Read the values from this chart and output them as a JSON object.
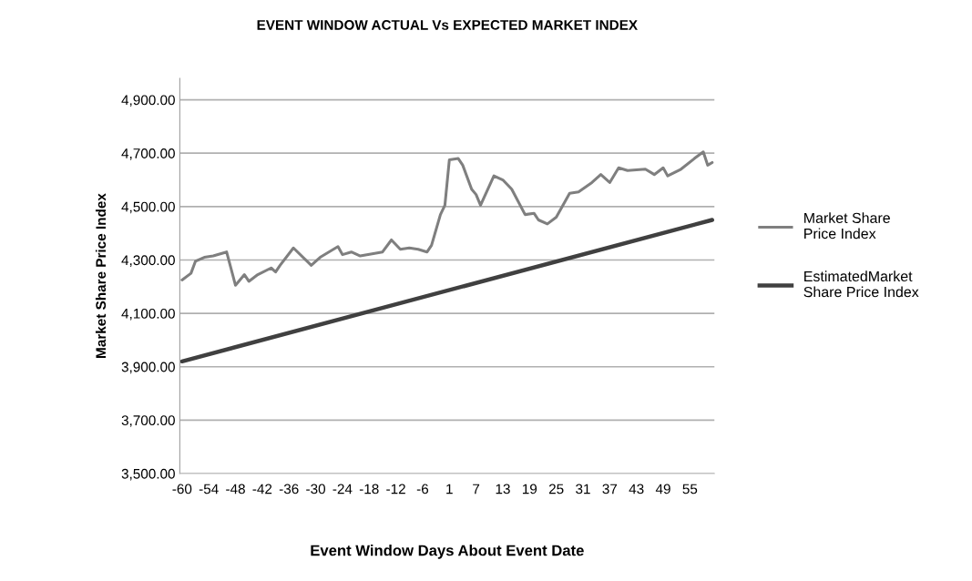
{
  "chart_data": {
    "type": "line",
    "title": "EVENT WINDOW ACTUAL Vs EXPECTED MARKET INDEX",
    "xlabel": "Event Window Days About Event Date",
    "ylabel": "Market Share Price Index",
    "categories": [
      "-60",
      null,
      null,
      null,
      null,
      null,
      "-54",
      null,
      null,
      null,
      null,
      null,
      "-48",
      null,
      null,
      null,
      null,
      null,
      "-42",
      null,
      null,
      null,
      null,
      null,
      "-36",
      null,
      null,
      null,
      null,
      null,
      "-30",
      null,
      null,
      null,
      null,
      null,
      "-24",
      null,
      null,
      null,
      null,
      null,
      "-18",
      null,
      null,
      null,
      null,
      null,
      "-12",
      null,
      null,
      null,
      null,
      null,
      "-6",
      null,
      null,
      null,
      null,
      null,
      "1",
      null,
      null,
      null,
      null,
      null,
      "7",
      null,
      null,
      null,
      null,
      null,
      "13",
      null,
      null,
      null,
      null,
      null,
      "19",
      null,
      null,
      null,
      null,
      null,
      "25",
      null,
      null,
      null,
      null,
      null,
      "31",
      null,
      null,
      null,
      null,
      null,
      "37",
      null,
      null,
      null,
      null,
      null,
      "43",
      null,
      null,
      null,
      null,
      null,
      "49",
      null,
      null,
      null,
      null,
      null,
      "55",
      null,
      null,
      null,
      null,
      null
    ],
    "series": [
      {
        "name": "Market Share Price Index",
        "color": "#7f7f7f",
        "values": [
          4225,
          null,
          4250,
          4295,
          null,
          4310,
          null,
          4315,
          null,
          null,
          4330,
          null,
          4205,
          null,
          4245,
          4220,
          null,
          4245,
          null,
          null,
          4270,
          4255,
          4280,
          null,
          null,
          4345,
          null,
          null,
          null,
          4280,
          null,
          4310,
          null,
          null,
          null,
          4350,
          4320,
          null,
          4330,
          null,
          4315,
          null,
          null,
          null,
          null,
          4330,
          null,
          4375,
          null,
          4340,
          null,
          4345,
          null,
          4340,
          null,
          4330,
          4355,
          null,
          4470,
          4505,
          4675,
          null,
          4680,
          4655,
          null,
          4565,
          4545,
          4505,
          null,
          null,
          4615,
          null,
          4600,
          null,
          4565,
          null,
          null,
          4470,
          null,
          4475,
          4450,
          null,
          4435,
          null,
          4460,
          null,
          null,
          4550,
          null,
          4555,
          null,
          null,
          4590,
          null,
          4620,
          null,
          4590,
          null,
          4645,
          null,
          4635,
          null,
          null,
          null,
          4640,
          null,
          4620,
          null,
          4645,
          4615,
          null,
          null,
          4640,
          null,
          null,
          4680,
          null,
          4705,
          4655,
          4665
        ]
      },
      {
        "name": "EstimatedMarket Share Price Index",
        "color": "#404040",
        "values": [
          3920,
          null,
          null,
          null,
          null,
          null,
          null,
          null,
          null,
          null,
          null,
          null,
          null,
          null,
          null,
          null,
          null,
          null,
          null,
          null,
          null,
          null,
          null,
          null,
          null,
          null,
          null,
          null,
          null,
          null,
          null,
          null,
          null,
          null,
          null,
          null,
          null,
          null,
          null,
          null,
          null,
          null,
          null,
          null,
          null,
          null,
          null,
          null,
          null,
          null,
          null,
          null,
          null,
          null,
          null,
          null,
          null,
          null,
          null,
          null,
          null,
          null,
          null,
          null,
          null,
          null,
          null,
          null,
          null,
          null,
          null,
          null,
          null,
          null,
          null,
          null,
          null,
          null,
          null,
          null,
          null,
          null,
          null,
          null,
          null,
          null,
          null,
          null,
          null,
          null,
          null,
          null,
          null,
          null,
          null,
          null,
          null,
          null,
          null,
          null,
          null,
          null,
          null,
          null,
          null,
          null,
          null,
          null,
          null,
          null,
          null,
          null,
          null,
          null,
          null,
          null,
          null,
          null,
          null,
          4450
        ]
      }
    ],
    "ylim": [
      3500,
      4980
    ],
    "yticks": [
      {
        "value": 3500,
        "label": "3,500.00"
      },
      {
        "value": 3700,
        "label": "3,700.00"
      },
      {
        "value": 3900,
        "label": "3,900.00"
      },
      {
        "value": 4100,
        "label": "4,100.00"
      },
      {
        "value": 4300,
        "label": "4,300.00"
      },
      {
        "value": 4500,
        "label": "4,500.00"
      },
      {
        "value": 4700,
        "label": "4,700.00"
      },
      {
        "value": 4900,
        "label": "4,900.00"
      }
    ],
    "grid": "y",
    "legend": "right",
    "line_style": "solid",
    "marker": "none"
  }
}
